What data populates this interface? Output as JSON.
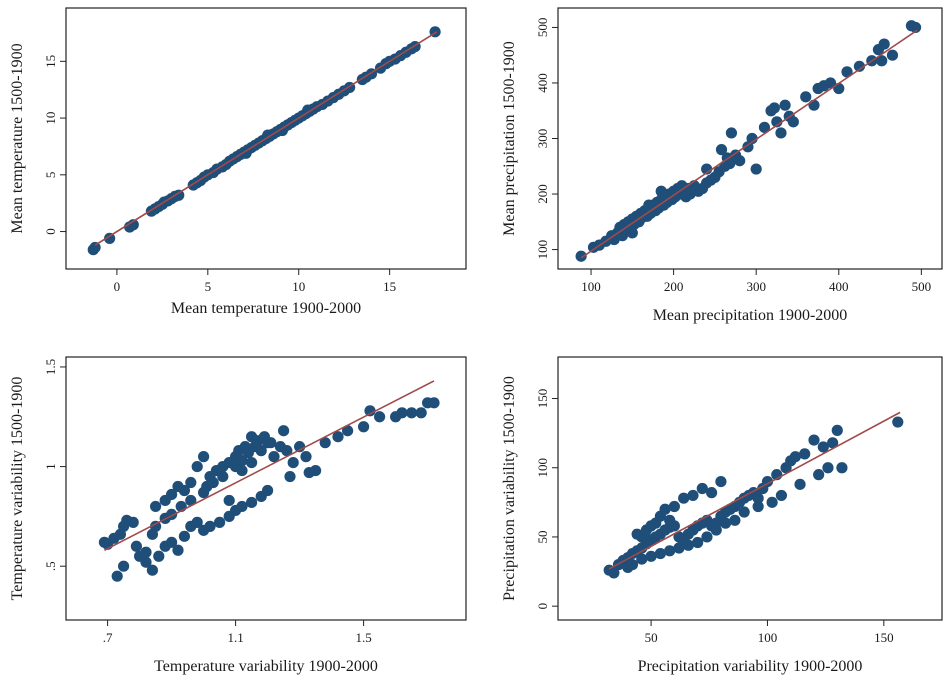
{
  "colors": {
    "dot": "#1f4e79",
    "fit_line": "#a04a4a",
    "frame": "#222222"
  },
  "chart_data": [
    {
      "type": "scatter",
      "xlabel": "Mean temperature 1900-2000",
      "ylabel": "Mean temperature 1500-1900",
      "xlim": [
        -2.8,
        19.2
      ],
      "ylim": [
        -3.3,
        19.7
      ],
      "xticks": [
        0,
        5,
        10,
        15
      ],
      "yticks": [
        0,
        5,
        10,
        15
      ],
      "xtick_labels": [
        "0",
        "5",
        "10",
        "15"
      ],
      "ytick_labels": [
        "0",
        "5",
        "10",
        "15"
      ],
      "fit_line": [
        [
          -1.2,
          -1.2
        ],
        [
          17.6,
          17.6
        ]
      ],
      "points": [
        [
          -1.3,
          -1.6
        ],
        [
          -1.2,
          -1.4
        ],
        [
          -0.4,
          -0.6
        ],
        [
          0.7,
          0.4
        ],
        [
          0.9,
          0.6
        ],
        [
          1.9,
          1.8
        ],
        [
          2.1,
          2.0
        ],
        [
          2.3,
          2.2
        ],
        [
          2.5,
          2.4
        ],
        [
          2.6,
          2.6
        ],
        [
          2.8,
          2.7
        ],
        [
          3.0,
          2.9
        ],
        [
          3.2,
          3.1
        ],
        [
          3.4,
          3.2
        ],
        [
          4.2,
          4.1
        ],
        [
          4.4,
          4.3
        ],
        [
          4.6,
          4.5
        ],
        [
          4.8,
          4.8
        ],
        [
          5.0,
          5.0
        ],
        [
          5.3,
          5.2
        ],
        [
          5.5,
          5.5
        ],
        [
          5.8,
          5.7
        ],
        [
          6.0,
          5.9
        ],
        [
          6.2,
          6.2
        ],
        [
          6.4,
          6.4
        ],
        [
          6.6,
          6.6
        ],
        [
          6.8,
          6.8
        ],
        [
          7.0,
          7.0
        ],
        [
          7.2,
          7.2
        ],
        [
          7.4,
          7.4
        ],
        [
          7.6,
          7.6
        ],
        [
          7.8,
          7.8
        ],
        [
          8.0,
          8.0
        ],
        [
          8.2,
          8.2
        ],
        [
          8.4,
          8.4
        ],
        [
          8.6,
          8.6
        ],
        [
          8.8,
          8.8
        ],
        [
          9.0,
          9.0
        ],
        [
          9.2,
          9.2
        ],
        [
          9.4,
          9.4
        ],
        [
          9.6,
          9.6
        ],
        [
          9.8,
          9.8
        ],
        [
          10.0,
          10.0
        ],
        [
          10.2,
          10.2
        ],
        [
          10.4,
          10.4
        ],
        [
          10.6,
          10.6
        ],
        [
          10.8,
          10.8
        ],
        [
          11.0,
          11.0
        ],
        [
          11.3,
          11.2
        ],
        [
          11.6,
          11.5
        ],
        [
          11.9,
          11.8
        ],
        [
          12.2,
          12.1
        ],
        [
          12.5,
          12.4
        ],
        [
          12.8,
          12.7
        ],
        [
          13.5,
          13.4
        ],
        [
          13.7,
          13.6
        ],
        [
          14.0,
          13.9
        ],
        [
          14.5,
          14.4
        ],
        [
          14.8,
          14.8
        ],
        [
          15.0,
          15.0
        ],
        [
          15.3,
          15.2
        ],
        [
          15.6,
          15.5
        ],
        [
          15.9,
          15.8
        ],
        [
          16.2,
          16.1
        ],
        [
          16.4,
          16.3
        ],
        [
          17.5,
          17.6
        ],
        [
          7.1,
          6.9
        ],
        [
          8.3,
          8.5
        ],
        [
          9.1,
          8.9
        ],
        [
          10.5,
          10.7
        ]
      ]
    },
    {
      "type": "scatter",
      "xlabel": "Mean precipitation 1900-2000",
      "ylabel": "Mean precipitation 1500-1900",
      "xlim": [
        60,
        525
      ],
      "ylim": [
        65,
        535
      ],
      "xticks": [
        100,
        200,
        300,
        400,
        500
      ],
      "yticks": [
        100,
        200,
        300,
        400,
        500
      ],
      "xtick_labels": [
        "100",
        "200",
        "300",
        "400",
        "500"
      ],
      "ytick_labels": [
        "100",
        "200",
        "300",
        "400",
        "500"
      ],
      "fit_line": [
        [
          88,
          85
        ],
        [
          495,
          495
        ]
      ],
      "points": [
        [
          88,
          88
        ],
        [
          103,
          104
        ],
        [
          110,
          108
        ],
        [
          118,
          115
        ],
        [
          125,
          125
        ],
        [
          128,
          118
        ],
        [
          132,
          130
        ],
        [
          135,
          140
        ],
        [
          138,
          125
        ],
        [
          140,
          145
        ],
        [
          142,
          135
        ],
        [
          145,
          150
        ],
        [
          148,
          140
        ],
        [
          150,
          155
        ],
        [
          152,
          145
        ],
        [
          155,
          160
        ],
        [
          158,
          150
        ],
        [
          160,
          165
        ],
        [
          162,
          158
        ],
        [
          165,
          170
        ],
        [
          168,
          160
        ],
        [
          170,
          175
        ],
        [
          172,
          165
        ],
        [
          175,
          180
        ],
        [
          178,
          170
        ],
        [
          180,
          185
        ],
        [
          182,
          175
        ],
        [
          185,
          190
        ],
        [
          188,
          180
        ],
        [
          190,
          195
        ],
        [
          192,
          185
        ],
        [
          195,
          200
        ],
        [
          198,
          190
        ],
        [
          200,
          205
        ],
        [
          202,
          195
        ],
        [
          205,
          210
        ],
        [
          208,
          200
        ],
        [
          210,
          215
        ],
        [
          212,
          205
        ],
        [
          215,
          195
        ],
        [
          218,
          210
        ],
        [
          220,
          200
        ],
        [
          225,
          215
        ],
        [
          230,
          205
        ],
        [
          235,
          210
        ],
        [
          240,
          220
        ],
        [
          245,
          225
        ],
        [
          250,
          230
        ],
        [
          255,
          240
        ],
        [
          258,
          280
        ],
        [
          262,
          250
        ],
        [
          265,
          265
        ],
        [
          268,
          255
        ],
        [
          270,
          310
        ],
        [
          275,
          270
        ],
        [
          280,
          260
        ],
        [
          290,
          285
        ],
        [
          295,
          300
        ],
        [
          300,
          245
        ],
        [
          310,
          320
        ],
        [
          318,
          350
        ],
        [
          322,
          355
        ],
        [
          325,
          330
        ],
        [
          330,
          310
        ],
        [
          335,
          360
        ],
        [
          340,
          340
        ],
        [
          345,
          330
        ],
        [
          360,
          375
        ],
        [
          370,
          360
        ],
        [
          375,
          390
        ],
        [
          382,
          395
        ],
        [
          390,
          400
        ],
        [
          400,
          390
        ],
        [
          410,
          420
        ],
        [
          425,
          430
        ],
        [
          440,
          440
        ],
        [
          448,
          460
        ],
        [
          452,
          440
        ],
        [
          455,
          470
        ],
        [
          465,
          450
        ],
        [
          488,
          503
        ],
        [
          493,
          500
        ],
        [
          170,
          180
        ],
        [
          185,
          205
        ],
        [
          150,
          130
        ],
        [
          240,
          245
        ]
      ]
    },
    {
      "type": "scatter",
      "xlabel": "Temperature variability 1900-2000",
      "ylabel": "Temperature variability 1500-1900",
      "xlim": [
        0.57,
        1.82
      ],
      "ylim": [
        0.23,
        1.55
      ],
      "xticks": [
        0.7,
        1.1,
        1.5
      ],
      "yticks": [
        0.5,
        1.0,
        1.5
      ],
      "xtick_labels": [
        ".7",
        "1.1",
        "1.5"
      ],
      "ytick_labels": [
        ".5",
        "1",
        "1.5"
      ],
      "fit_line": [
        [
          0.69,
          0.58
        ],
        [
          1.72,
          1.43
        ]
      ],
      "points": [
        [
          0.69,
          0.62
        ],
        [
          0.7,
          0.61
        ],
        [
          0.72,
          0.64
        ],
        [
          0.74,
          0.66
        ],
        [
          0.75,
          0.7
        ],
        [
          0.76,
          0.73
        ],
        [
          0.78,
          0.72
        ],
        [
          0.79,
          0.6
        ],
        [
          0.82,
          0.57
        ],
        [
          0.84,
          0.66
        ],
        [
          0.85,
          0.8
        ],
        [
          0.88,
          0.83
        ],
        [
          0.9,
          0.86
        ],
        [
          0.92,
          0.9
        ],
        [
          0.94,
          0.88
        ],
        [
          0.96,
          0.92
        ],
        [
          0.73,
          0.45
        ],
        [
          0.75,
          0.5
        ],
        [
          0.8,
          0.55
        ],
        [
          0.82,
          0.52
        ],
        [
          0.84,
          0.48
        ],
        [
          0.86,
          0.55
        ],
        [
          0.88,
          0.6
        ],
        [
          0.9,
          0.62
        ],
        [
          0.92,
          0.58
        ],
        [
          0.94,
          0.65
        ],
        [
          0.96,
          0.7
        ],
        [
          0.98,
          0.72
        ],
        [
          1.0,
          0.68
        ],
        [
          1.02,
          0.7
        ],
        [
          1.05,
          0.72
        ],
        [
          1.08,
          0.75
        ],
        [
          1.1,
          0.78
        ],
        [
          1.12,
          0.8
        ],
        [
          1.15,
          0.82
        ],
        [
          1.18,
          0.85
        ],
        [
          1.2,
          0.88
        ],
        [
          0.85,
          0.7
        ],
        [
          0.88,
          0.74
        ],
        [
          0.9,
          0.76
        ],
        [
          0.93,
          0.8
        ],
        [
          0.96,
          0.83
        ],
        [
          1.0,
          0.87
        ],
        [
          1.02,
          0.95
        ],
        [
          1.04,
          0.98
        ],
        [
          1.06,
          1.0
        ],
        [
          1.08,
          1.02
        ],
        [
          1.1,
          1.05
        ],
        [
          1.12,
          1.03
        ],
        [
          1.14,
          1.07
        ],
        [
          1.16,
          1.1
        ],
        [
          1.18,
          1.08
        ],
        [
          1.2,
          1.12
        ],
        [
          1.22,
          1.05
        ],
        [
          1.24,
          1.1
        ],
        [
          1.26,
          1.08
        ],
        [
          1.28,
          1.02
        ],
        [
          1.3,
          1.1
        ],
        [
          1.32,
          1.05
        ],
        [
          1.35,
          0.98
        ],
        [
          1.38,
          1.12
        ],
        [
          1.42,
          1.15
        ],
        [
          1.45,
          1.18
        ],
        [
          1.5,
          1.2
        ],
        [
          1.52,
          1.28
        ],
        [
          1.55,
          1.25
        ],
        [
          1.6,
          1.25
        ],
        [
          1.65,
          1.27
        ],
        [
          1.7,
          1.32
        ],
        [
          1.72,
          1.32
        ],
        [
          1.68,
          1.27
        ],
        [
          1.62,
          1.27
        ],
        [
          1.1,
          1.0
        ],
        [
          1.12,
          0.98
        ],
        [
          1.15,
          1.02
        ],
        [
          1.06,
          0.95
        ],
        [
          1.01,
          0.9
        ],
        [
          1.27,
          0.95
        ],
        [
          1.33,
          0.97
        ],
        [
          1.08,
          0.83
        ],
        [
          1.11,
          1.08
        ],
        [
          1.13,
          1.1
        ],
        [
          1.17,
          1.13
        ],
        [
          1.19,
          1.15
        ],
        [
          1.21,
          1.12
        ],
        [
          1.03,
          0.92
        ],
        [
          0.98,
          1.0
        ],
        [
          1.0,
          1.05
        ],
        [
          1.15,
          1.15
        ],
        [
          1.25,
          1.18
        ]
      ]
    },
    {
      "type": "scatter",
      "xlabel": "Precipitation variability 1900-2000",
      "ylabel": "Precipitation variability 1500-1900",
      "xlim": [
        10,
        175
      ],
      "ylim": [
        -10,
        180
      ],
      "xticks": [
        50,
        100,
        150
      ],
      "yticks": [
        0,
        50,
        100,
        150
      ],
      "xtick_labels": [
        "50",
        "100",
        "150"
      ],
      "ytick_labels": [
        "0",
        "50",
        "100",
        "150"
      ],
      "fit_line": [
        [
          32,
          27
        ],
        [
          157,
          140
        ]
      ],
      "points": [
        [
          32,
          26
        ],
        [
          34,
          24
        ],
        [
          36,
          30
        ],
        [
          38,
          33
        ],
        [
          40,
          35
        ],
        [
          42,
          38
        ],
        [
          44,
          40
        ],
        [
          46,
          42
        ],
        [
          48,
          45
        ],
        [
          50,
          48
        ],
        [
          52,
          50
        ],
        [
          54,
          52
        ],
        [
          56,
          55
        ],
        [
          58,
          57
        ],
        [
          60,
          58
        ],
        [
          62,
          50
        ],
        [
          64,
          48
        ],
        [
          66,
          52
        ],
        [
          68,
          55
        ],
        [
          70,
          58
        ],
        [
          72,
          60
        ],
        [
          74,
          62
        ],
        [
          76,
          58
        ],
        [
          78,
          60
        ],
        [
          80,
          65
        ],
        [
          82,
          68
        ],
        [
          84,
          70
        ],
        [
          86,
          72
        ],
        [
          88,
          75
        ],
        [
          90,
          78
        ],
        [
          92,
          80
        ],
        [
          94,
          82
        ],
        [
          96,
          78
        ],
        [
          98,
          85
        ],
        [
          100,
          90
        ],
        [
          104,
          95
        ],
        [
          108,
          100
        ],
        [
          110,
          105
        ],
        [
          112,
          108
        ],
        [
          116,
          110
        ],
        [
          120,
          120
        ],
        [
          124,
          115
        ],
        [
          128,
          118
        ],
        [
          130,
          127
        ],
        [
          126,
          100
        ],
        [
          122,
          95
        ],
        [
          114,
          88
        ],
        [
          106,
          80
        ],
        [
          102,
          75
        ],
        [
          96,
          72
        ],
        [
          90,
          68
        ],
        [
          86,
          62
        ],
        [
          82,
          60
        ],
        [
          78,
          55
        ],
        [
          74,
          50
        ],
        [
          70,
          46
        ],
        [
          66,
          44
        ],
        [
          62,
          42
        ],
        [
          58,
          40
        ],
        [
          54,
          38
        ],
        [
          50,
          36
        ],
        [
          46,
          34
        ],
        [
          42,
          30
        ],
        [
          40,
          28
        ],
        [
          52,
          60
        ],
        [
          54,
          65
        ],
        [
          56,
          70
        ],
        [
          58,
          62
        ],
        [
          60,
          72
        ],
        [
          64,
          78
        ],
        [
          68,
          80
        ],
        [
          72,
          85
        ],
        [
          76,
          82
        ],
        [
          80,
          90
        ],
        [
          48,
          55
        ],
        [
          46,
          50
        ],
        [
          132,
          100
        ],
        [
          156,
          133
        ],
        [
          44,
          52
        ],
        [
          50,
          58
        ]
      ]
    }
  ]
}
